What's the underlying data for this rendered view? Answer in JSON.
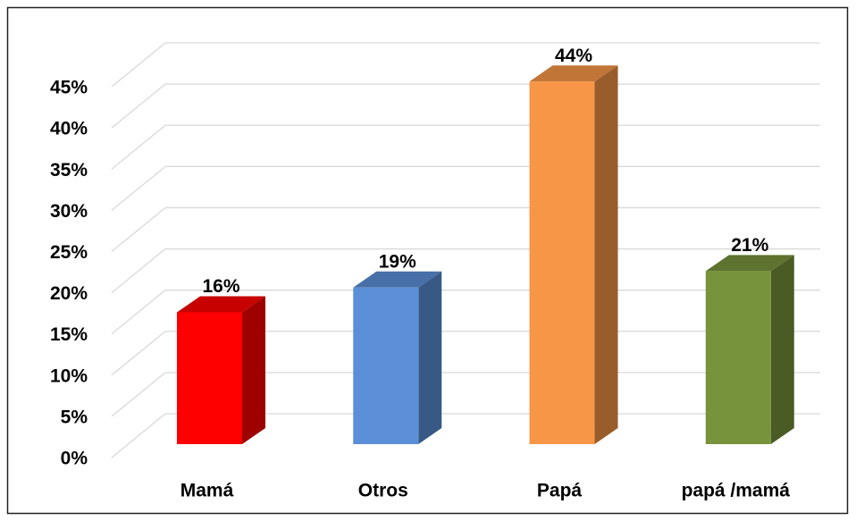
{
  "chart_data": {
    "type": "bar3d",
    "categories": [
      "Mamá",
      "Otros",
      "Papá",
      "papá /mamá"
    ],
    "values": [
      16,
      19,
      44,
      21
    ],
    "value_labels": [
      "16%",
      "19%",
      "44%",
      "21%"
    ],
    "colors": [
      "#ff0000",
      "#5b8fd8",
      "#f79646",
      "#77933c"
    ],
    "ylim": [
      0,
      45
    ],
    "yticks": [
      {
        "value": 0,
        "label": "0%"
      },
      {
        "value": 5,
        "label": "5%"
      },
      {
        "value": 10,
        "label": "10%"
      },
      {
        "value": 15,
        "label": "15%"
      },
      {
        "value": 20,
        "label": "20%"
      },
      {
        "value": 25,
        "label": "25%"
      },
      {
        "value": 30,
        "label": "30%"
      },
      {
        "value": 35,
        "label": "35%"
      },
      {
        "value": 40,
        "label": "40%"
      },
      {
        "value": 45,
        "label": "45%"
      }
    ],
    "grid": true
  }
}
